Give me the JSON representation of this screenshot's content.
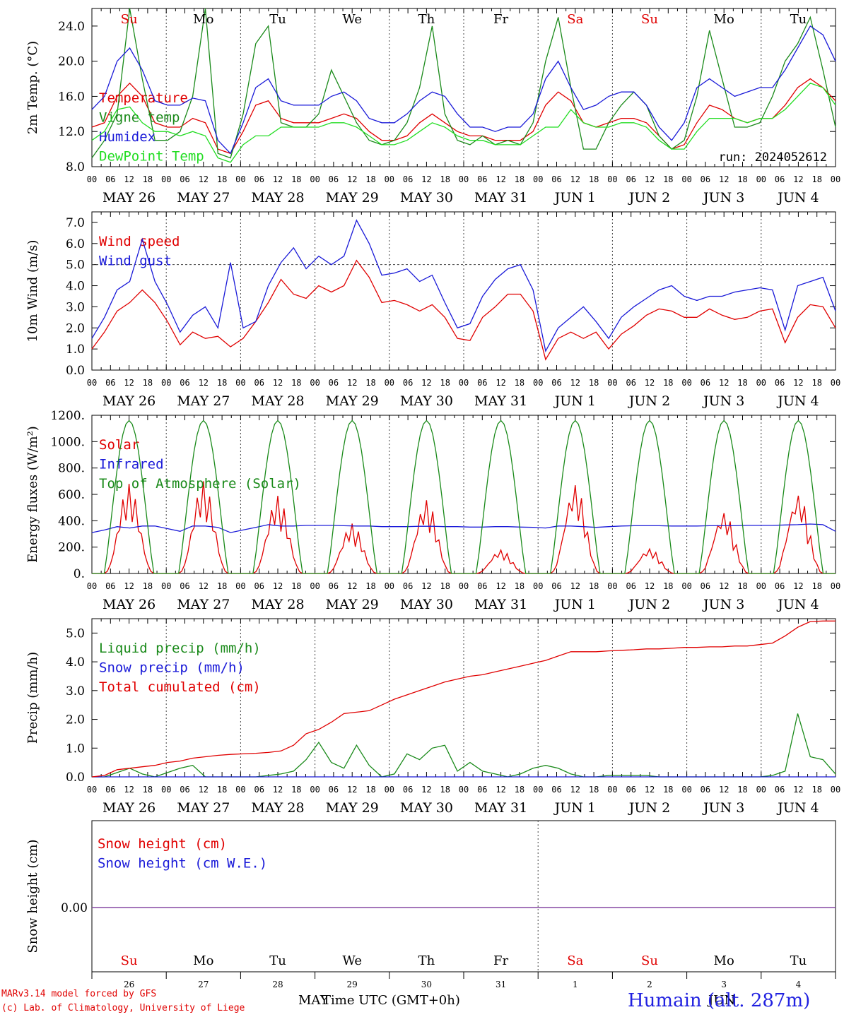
{
  "colors": {
    "red": "#e00000",
    "green": "#1a8a1a",
    "blue": "#1a1ad8",
    "lightgreen": "#22dd22",
    "purple": "#8040a0"
  },
  "days": [
    "Su",
    "Mo",
    "Tu",
    "We",
    "Th",
    "Fr",
    "Sa",
    "Su",
    "Mo",
    "Tu"
  ],
  "dates": [
    "MAY 26",
    "MAY 27",
    "MAY 28",
    "MAY 29",
    "MAY 30",
    "MAY 31",
    "JUN  1",
    "JUN  2",
    "JUN  3",
    "JUN  4"
  ],
  "day_numbers": [
    "26",
    "27",
    "28",
    "29",
    "30",
    "31",
    "1",
    "2",
    "3",
    "4"
  ],
  "hour_ticks": [
    "00",
    "06",
    "12",
    "18"
  ],
  "run_label": "run: 2024052612",
  "footer": {
    "line1": "MARv3.14 model forced by GFS",
    "line2": "(c) Lab. of Climatology, University of Liege",
    "xtitle": "Time UTC (GMT+0h)",
    "month_left": "MAY",
    "month_right": "JUN",
    "station": "Humain (alt. 287m)"
  },
  "chart_data": [
    {
      "type": "line",
      "ylabel": "2m Temp. (°C)",
      "ylim": [
        8,
        26
      ],
      "yticks": [
        "8.0",
        "12.0",
        "16.0",
        "20.0",
        "24.0"
      ],
      "x": "hours since MAY 26 00 UTC, step 6",
      "series": [
        {
          "name": "Temperature",
          "color": "red",
          "values": [
            12.5,
            13,
            16,
            17.5,
            16,
            13,
            12.5,
            12.5,
            13.5,
            13,
            10,
            9.5,
            12,
            15,
            15.5,
            13.5,
            13,
            13,
            13,
            13.5,
            14,
            13.5,
            12,
            11,
            11,
            11.5,
            13,
            14,
            13,
            12,
            11.5,
            11.5,
            11,
            11,
            11,
            12,
            15,
            16.5,
            15.5,
            13,
            12.5,
            13,
            13.5,
            13.5,
            13,
            11.5,
            10,
            10.5,
            13,
            15,
            14.5,
            13.5,
            13,
            13.5,
            13.5,
            15,
            17,
            18,
            17,
            15.5
          ]
        },
        {
          "name": "Vigne temp",
          "color": "green",
          "values": [
            9,
            11,
            14,
            26,
            18,
            11,
            11,
            12,
            16,
            26,
            9.5,
            9,
            14,
            22,
            24,
            13,
            12.5,
            12.5,
            14,
            19,
            16,
            13,
            11,
            10.5,
            11,
            13,
            17,
            24,
            14,
            11,
            10.5,
            11.5,
            10.5,
            11,
            10.5,
            13,
            20,
            25,
            17,
            10,
            10,
            13,
            15,
            16.5,
            15,
            11.5,
            10,
            11,
            16,
            23.5,
            18,
            12.5,
            12.5,
            13,
            16,
            20,
            22,
            25,
            19,
            12.5
          ]
        },
        {
          "name": "Humidex",
          "color": "blue",
          "values": [
            14.5,
            16,
            20,
            21.5,
            19,
            15.5,
            15,
            15,
            15.8,
            15.5,
            11,
            9.5,
            13,
            17,
            18,
            15.5,
            15,
            15,
            15,
            16,
            16.5,
            15.5,
            13.5,
            13,
            13,
            14,
            15.5,
            16.5,
            16,
            14,
            12.5,
            12.5,
            12,
            12.5,
            12.5,
            14,
            18,
            20,
            17,
            14.5,
            15,
            16,
            16.5,
            16.5,
            15,
            12.5,
            11,
            13,
            17,
            18,
            17,
            16,
            16.5,
            17,
            17,
            19,
            21.5,
            24,
            23,
            20
          ]
        },
        {
          "name": "DewPoint Temp",
          "color": "lightgreen",
          "values": [
            11,
            12,
            14.5,
            14.8,
            13,
            12,
            12,
            11.5,
            12,
            11.5,
            9,
            8.5,
            10.5,
            11.5,
            11.5,
            12.5,
            12.5,
            12.5,
            12.5,
            13,
            13,
            12.5,
            11.5,
            10.5,
            10.5,
            11,
            12,
            13,
            12.5,
            11.5,
            11,
            11,
            10.5,
            10.5,
            10.5,
            11.5,
            12.5,
            12.5,
            14.5,
            13,
            12.5,
            12.5,
            13,
            13,
            12.5,
            11,
            10,
            10,
            12,
            13.5,
            13.5,
            13.5,
            13,
            13.5,
            13.5,
            14.5,
            16,
            17.5,
            17,
            15
          ]
        }
      ]
    },
    {
      "type": "line",
      "ylabel": "10m Wind (m/s)",
      "ylim": [
        0,
        7.5
      ],
      "yticks": [
        "0.0",
        "1.0",
        "2.0",
        "3.0",
        "4.0",
        "5.0",
        "6.0",
        "7.0"
      ],
      "reference_line": 5.0,
      "series": [
        {
          "name": "Wind speed",
          "color": "red",
          "values": [
            1,
            1.8,
            2.8,
            3.2,
            3.8,
            3.2,
            2.3,
            1.2,
            1.8,
            1.5,
            1.6,
            1.1,
            1.5,
            2.3,
            3.2,
            4.3,
            3.6,
            3.4,
            4,
            3.7,
            4,
            5.2,
            4.4,
            3.2,
            3.3,
            3.1,
            2.8,
            3.1,
            2.5,
            1.5,
            1.4,
            2.5,
            3,
            3.6,
            3.6,
            2.8,
            0.5,
            1.5,
            1.8,
            1.5,
            1.8,
            1,
            1.7,
            2.1,
            2.6,
            2.9,
            2.8,
            2.5,
            2.5,
            2.9,
            2.6,
            2.4,
            2.5,
            2.8,
            2.9,
            1.3,
            2.5,
            3.1,
            3,
            2
          ]
        },
        {
          "name": "Wind gust",
          "color": "blue",
          "values": [
            1.5,
            2.5,
            3.8,
            4.2,
            6.2,
            4.2,
            3.1,
            1.8,
            2.6,
            3,
            2,
            5.1,
            2,
            2.3,
            4,
            5.1,
            5.8,
            4.8,
            5.4,
            5,
            5.4,
            7.1,
            6,
            4.5,
            4.6,
            4.8,
            4.2,
            4.5,
            3.2,
            2,
            2.2,
            3.5,
            4.3,
            4.8,
            5,
            3.8,
            0.9,
            2,
            2.5,
            3,
            2.3,
            1.5,
            2.5,
            3,
            3.4,
            3.8,
            4,
            3.5,
            3.3,
            3.5,
            3.5,
            3.7,
            3.8,
            3.9,
            3.8,
            1.9,
            4,
            4.2,
            4.4,
            2.8
          ]
        }
      ]
    },
    {
      "type": "line",
      "ylabel": "Energy fluxes (W/m²)",
      "ylim": [
        0,
        1200
      ],
      "yticks": [
        "0.",
        "200.",
        "400.",
        "600.",
        "800.",
        "1000.",
        "1200."
      ],
      "series": [
        {
          "name": "Solar",
          "color": "red",
          "shape": "diurnal",
          "peaks": [
            680,
            700,
            590,
            380,
            560,
            180,
            680,
            190,
            470,
            610
          ]
        },
        {
          "name": "Infrared",
          "color": "blue",
          "values": [
            310,
            330,
            355,
            345,
            360,
            360,
            340,
            320,
            360,
            360,
            350,
            310,
            330,
            350,
            370,
            360,
            360,
            365,
            365,
            365,
            362,
            360,
            360,
            355,
            355,
            355,
            358,
            358,
            355,
            355,
            352,
            352,
            355,
            355,
            352,
            350,
            345,
            360,
            360,
            355,
            350,
            355,
            360,
            362,
            362,
            362,
            360,
            360,
            360,
            362,
            362,
            362,
            365,
            365,
            365,
            368,
            370,
            375,
            370,
            320
          ]
        },
        {
          "name": "Top of Atmosphere (Solar)",
          "color": "green",
          "shape": "diurnal",
          "peaks": [
            1160,
            1160,
            1160,
            1160,
            1160,
            1160,
            1160,
            1160,
            1160,
            1160
          ]
        }
      ]
    },
    {
      "type": "line",
      "ylabel": "Precip (mm/h)",
      "ylim": [
        0,
        5.5
      ],
      "yticks": [
        "0.0",
        "1.0",
        "2.0",
        "3.0",
        "4.0",
        "5.0"
      ],
      "series": [
        {
          "name": "Liquid precip (mm/h)",
          "color": "green",
          "values": [
            0,
            0,
            0.15,
            0.3,
            0.1,
            0,
            0.15,
            0.3,
            0.4,
            0,
            0,
            0,
            0,
            0,
            0.05,
            0.1,
            0.2,
            0.6,
            1.2,
            0.5,
            0.3,
            1.1,
            0.4,
            0,
            0.1,
            0.8,
            0.6,
            1.0,
            1.1,
            0.2,
            0.5,
            0.2,
            0.1,
            0,
            0.1,
            0.3,
            0.4,
            0.3,
            0.1,
            0,
            0,
            0.05,
            0.05,
            0.05,
            0.05,
            0,
            0,
            0,
            0,
            0,
            0,
            0,
            0,
            0,
            0.05,
            0.2,
            2.2,
            0.7,
            0.6,
            0.1
          ]
        },
        {
          "name": "Snow precip (mm/h)",
          "color": "blue",
          "values": [
            0,
            0,
            0,
            0,
            0,
            0,
            0,
            0,
            0,
            0,
            0,
            0,
            0,
            0,
            0,
            0,
            0,
            0,
            0,
            0,
            0,
            0,
            0,
            0,
            0,
            0,
            0,
            0,
            0,
            0,
            0,
            0,
            0,
            0,
            0,
            0,
            0,
            0,
            0,
            0,
            0,
            0,
            0,
            0,
            0,
            0,
            0,
            0,
            0,
            0,
            0,
            0,
            0,
            0,
            0,
            0,
            0,
            0,
            0,
            0
          ]
        },
        {
          "name": "Total cumulated (cm)",
          "color": "red",
          "values": [
            0,
            0.05,
            0.25,
            0.3,
            0.35,
            0.4,
            0.5,
            0.55,
            0.65,
            0.7,
            0.75,
            0.78,
            0.8,
            0.82,
            0.85,
            0.9,
            1.1,
            1.5,
            1.65,
            1.9,
            2.2,
            2.25,
            2.3,
            2.5,
            2.7,
            2.85,
            3.0,
            3.15,
            3.3,
            3.4,
            3.5,
            3.55,
            3.65,
            3.75,
            3.85,
            3.95,
            4.05,
            4.2,
            4.35,
            4.35,
            4.35,
            4.38,
            4.4,
            4.42,
            4.45,
            4.45,
            4.47,
            4.5,
            4.5,
            4.52,
            4.52,
            4.55,
            4.55,
            4.6,
            4.65,
            4.9,
            5.2,
            5.4,
            5.42,
            5.42
          ]
        }
      ]
    },
    {
      "type": "line",
      "ylabel": "Snow height (cm)",
      "yticks": [
        "0.00"
      ],
      "series": [
        {
          "name": "Snow height (cm)",
          "color": "red",
          "values": [
            0
          ]
        },
        {
          "name": "Snow height (cm W.E.)",
          "color": "blue",
          "values": [
            0
          ]
        }
      ]
    }
  ]
}
